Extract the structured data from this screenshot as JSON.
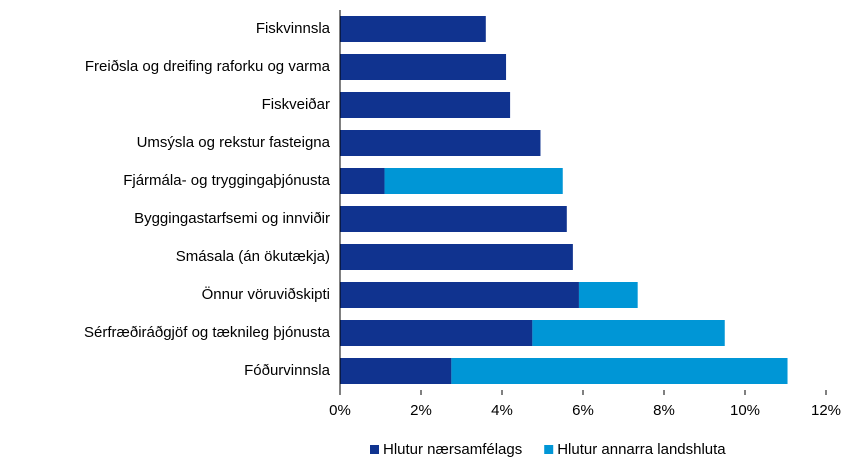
{
  "chart_data": {
    "type": "stacked-barh",
    "categories": [
      "Fiskvinnsla",
      "Freiðsla og dreifing raforku og varma",
      "Fiskveiðar",
      "Umsýsla og rekstur fasteigna",
      "Fjármála- og tryggingaþjónusta",
      "Byggingastarfsemi og innviðir",
      "Smásala (án ökutækja)",
      "Önnur vöruviðskipti",
      "Sérfræðiráðgjöf og tæknileg þjónusta",
      "Fóðurvinnsla"
    ],
    "series": [
      {
        "name": "Hlutur nærsamfélags",
        "color": "#10338f",
        "values": [
          3.6,
          4.1,
          4.2,
          4.95,
          1.1,
          5.6,
          5.75,
          5.9,
          4.75,
          2.75
        ]
      },
      {
        "name": "Hlutur annarra landshluta",
        "color": "#0096d6",
        "values": [
          null,
          null,
          null,
          null,
          4.4,
          null,
          null,
          1.45,
          4.75,
          8.3
        ]
      }
    ],
    "xlim": [
      0,
      12
    ],
    "xticks": [
      {
        "value": 0,
        "label": "0%"
      },
      {
        "value": 2,
        "label": "2%"
      },
      {
        "value": 4,
        "label": "4%"
      },
      {
        "value": 6,
        "label": "6%"
      },
      {
        "value": 8,
        "label": "8%"
      },
      {
        "value": 10,
        "label": "10%"
      },
      {
        "value": 12,
        "label": "12%"
      }
    ],
    "legend": "bottom"
  }
}
